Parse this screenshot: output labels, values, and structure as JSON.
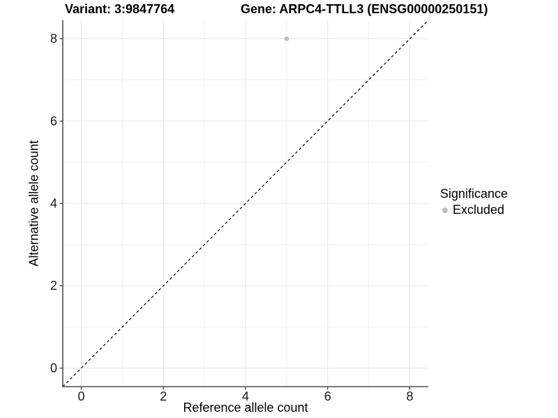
{
  "chart_data": {
    "type": "scatter",
    "titles": {
      "variant": "Variant: 3:9847764",
      "gene": "Gene: ARPC4-TTLL3 (ENSG00000250151)"
    },
    "xlabel": "Reference allele count",
    "ylabel": "Alternative allele count",
    "xlim": [
      -0.45,
      8.45
    ],
    "ylim": [
      -0.45,
      8.45
    ],
    "x_ticks": [
      0,
      2,
      4,
      6,
      8
    ],
    "y_ticks": [
      0,
      2,
      4,
      6,
      8
    ],
    "x_minor_ticks": [
      1,
      3,
      5,
      7
    ],
    "y_minor_ticks": [
      1,
      3,
      5,
      7
    ],
    "grid": "major and minor gridlines on white panel, no panel border",
    "series": [
      {
        "name": "Excluded",
        "marker": "circle",
        "color": "#bdbdbd",
        "points": [
          {
            "x": 5,
            "y": 8
          }
        ]
      }
    ],
    "reference_line": {
      "kind": "identity y=x across full panel",
      "style": "dashed",
      "color": "#000000"
    },
    "legend": {
      "position": "right",
      "title": "Significance",
      "entries": [
        {
          "label": "Excluded",
          "color": "#bdbdbd",
          "marker": "circle"
        }
      ]
    }
  },
  "colors": {
    "background": "#ffffff",
    "grid_major": "#e7e7e7",
    "grid_minor": "#f1f1f1",
    "axis_line": "#4d4d4d",
    "tick_mark": "#333333",
    "tick_text": "#1a1a1a",
    "point": "#bdbdbd"
  }
}
